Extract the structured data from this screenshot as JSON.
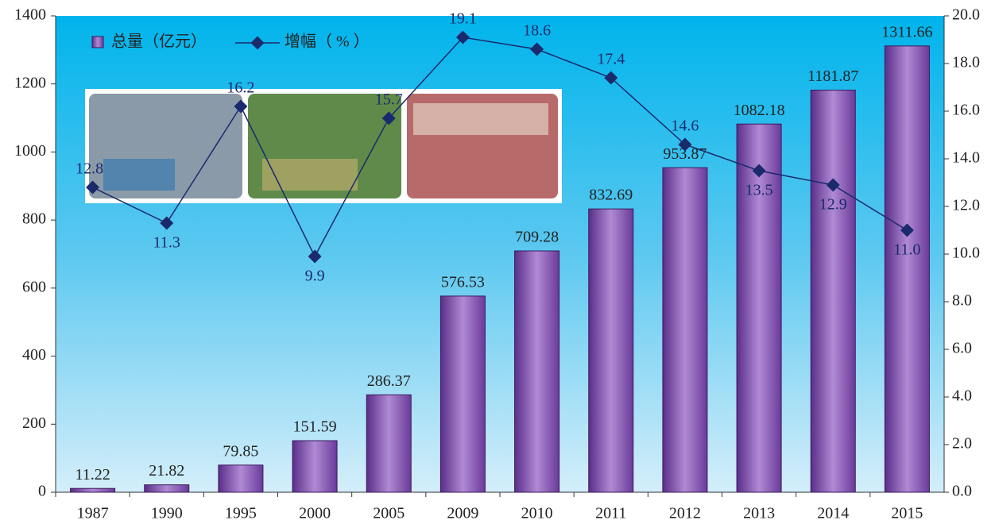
{
  "chart_data": {
    "type": "bar",
    "categories": [
      "1987",
      "1990",
      "1995",
      "2000",
      "2005",
      "2009",
      "2010",
      "2011",
      "2012",
      "2013",
      "2014",
      "2015"
    ],
    "series": [
      {
        "name": "总量（亿元）",
        "type": "bar",
        "color": "#7a4aa8",
        "values": [
          11.22,
          21.82,
          79.85,
          151.59,
          286.37,
          576.53,
          709.28,
          832.69,
          953.87,
          1082.18,
          1181.87,
          1311.66
        ]
      },
      {
        "name": "增幅（ % ）",
        "type": "line",
        "axis": "y2",
        "color": "#1a2a6c",
        "values": [
          12.8,
          11.3,
          16.2,
          9.9,
          15.7,
          19.1,
          18.6,
          17.4,
          14.6,
          13.5,
          12.9,
          11.0
        ],
        "value_labels": [
          "12.8",
          "11.3",
          "16.2",
          "9.9",
          "15.7",
          "19.1",
          "18.6",
          "17.4",
          "14.6",
          "13.5",
          "12.9",
          "11.0"
        ]
      }
    ],
    "ylim": [
      0,
      1400
    ],
    "yticks": [
      0,
      200,
      400,
      600,
      800,
      1000,
      1200,
      1400
    ],
    "y2lim": [
      0,
      20
    ],
    "y2ticks": [
      {
        "value": 0,
        "label": "0.0"
      },
      {
        "value": 2,
        "label": "2.0"
      },
      {
        "value": 4,
        "label": "4.0"
      },
      {
        "value": 6,
        "label": "6.0"
      },
      {
        "value": 8,
        "label": "8.0"
      },
      {
        "value": 10,
        "label": "10.0"
      },
      {
        "value": 12,
        "label": "12.0"
      },
      {
        "value": 14,
        "label": "14.0"
      },
      {
        "value": 16,
        "label": "16.0"
      },
      {
        "value": 18,
        "label": "18.0"
      },
      {
        "value": 20,
        "label": "20.0"
      }
    ],
    "legend": "top-left"
  }
}
